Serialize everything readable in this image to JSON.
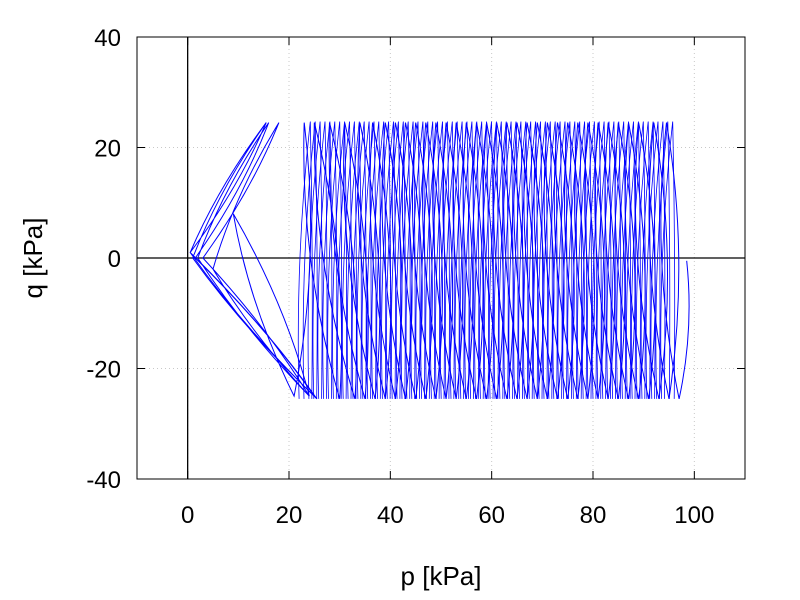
{
  "chart_data": {
    "type": "line",
    "title": "",
    "xlabel": "p [kPa]",
    "ylabel": "q [kPa]",
    "xlim": [
      -10,
      110
    ],
    "ylim": [
      -40,
      40
    ],
    "xticks": [
      0,
      20,
      40,
      60,
      80,
      100
    ],
    "yticks": [
      -40,
      -20,
      0,
      20,
      40
    ],
    "grid": true,
    "zero_lines": true,
    "legend": "none",
    "series": [
      {
        "color": "#0000ff",
        "description_points": {
          "q_amplitude": 25,
          "p_start": 0,
          "p_end": 98.5,
          "cycles": 75
        },
        "x": [
          0.5,
          15.5,
          0.5,
          25.5,
          0.5,
          15.5,
          0.5,
          25.5,
          0.5,
          15.5,
          1.0,
          25.0,
          1.5,
          16.0,
          2.0,
          24.0,
          3.0,
          18.0,
          5.0,
          24.0,
          9.0,
          21.0,
          23.0,
          30.0,
          25.0,
          33.0,
          28.0,
          35.0,
          31.0,
          37.0,
          34.0,
          39.0,
          36.5,
          41.0,
          39.0,
          43.0,
          41.0,
          45.0,
          43.0,
          47.0,
          45.0,
          49.0,
          47.0,
          51.0,
          49.0,
          53.0,
          51.0,
          55.0,
          53.0,
          57.0,
          55.0,
          59.0,
          57.0,
          61.0,
          59.0,
          63.0,
          61.0,
          65.0,
          63.0,
          67.0,
          65.0,
          69.0,
          67.0,
          71.0,
          69.0,
          73.0,
          71.0,
          75.0,
          73.0,
          77.0,
          75.0,
          79.0,
          77.0,
          81.0,
          79.0,
          83.0,
          81.0,
          85.0,
          83.0,
          87.0,
          85.0,
          89.0,
          87.0,
          91.0,
          89.0,
          93.0,
          92.0,
          95.0,
          94.5,
          97.0,
          98.5
        ],
        "y": [
          1,
          24.5,
          1,
          -25.5,
          1,
          24.5,
          1,
          -25.5,
          1,
          24.5,
          0,
          -25,
          0,
          24.5,
          0,
          -25,
          0,
          24.5,
          -2,
          -25,
          8,
          -25,
          24.5,
          -25.5,
          24.5,
          -25.5,
          24.5,
          -25.5,
          24.5,
          -25.5,
          24.5,
          -25.5,
          24.5,
          -25.5,
          24.5,
          -25.5,
          24.5,
          -25.5,
          24.5,
          -25.5,
          24.5,
          -25.5,
          24.5,
          -25.5,
          24.5,
          -25.5,
          24.5,
          -25.5,
          24.5,
          -25.5,
          24.5,
          -25.5,
          24.5,
          -25.5,
          24.5,
          -25.5,
          24.5,
          -25.5,
          24.5,
          -25.5,
          24.5,
          -25.5,
          24.5,
          -25.5,
          24.5,
          -25.5,
          24.5,
          -25.5,
          24.5,
          -25.5,
          24.5,
          -25.5,
          24.5,
          -25.5,
          24.5,
          -25.5,
          24.5,
          -25.5,
          24.5,
          -25.5,
          24.5,
          -25.5,
          24.5,
          -25.5,
          24.5,
          -25.5,
          24.5,
          -25.5,
          24.5,
          -25.5,
          -0.5
        ]
      }
    ]
  }
}
